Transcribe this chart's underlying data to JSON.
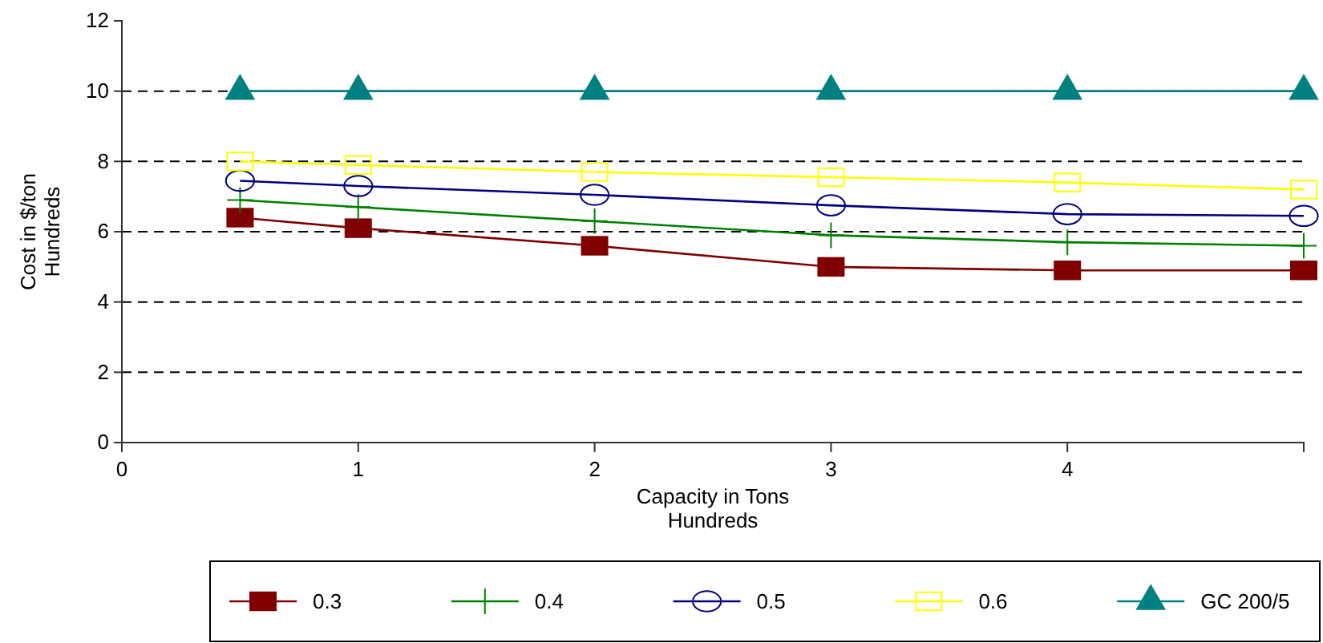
{
  "chart_data": {
    "type": "line",
    "xlabel": "Capacity in Tons\nHundreds",
    "ylabel": "Cost in $/ton\nHundreds",
    "x": [
      0.5,
      1,
      2,
      3,
      4,
      5
    ],
    "xlim": [
      0,
      5
    ],
    "xticks": [
      0,
      1,
      2,
      3,
      4
    ],
    "ylim": [
      0,
      12
    ],
    "yticks": [
      0,
      2,
      4,
      6,
      8,
      10,
      12
    ],
    "grid": "y",
    "legend": "bottom",
    "line_style": "solid",
    "series": [
      {
        "name": "0.3",
        "color": "#800000",
        "marker": "square",
        "values": [
          6.4,
          6.1,
          5.6,
          5.0,
          4.9,
          4.9
        ]
      },
      {
        "name": "0.4",
        "color": "#008000",
        "marker": "cross",
        "values": [
          6.9,
          6.7,
          6.3,
          5.9,
          5.7,
          5.6
        ]
      },
      {
        "name": "0.5",
        "color": "#000080",
        "marker": "circle",
        "values": [
          7.45,
          7.3,
          7.05,
          6.75,
          6.5,
          6.45
        ]
      },
      {
        "name": "0.6",
        "color": "#ffff00",
        "marker": "square",
        "values": [
          8.0,
          7.9,
          7.7,
          7.55,
          7.4,
          7.2
        ]
      },
      {
        "name": "GC 200/5",
        "color": "#008080",
        "marker": "triangle",
        "values": [
          10,
          10,
          10,
          10,
          10,
          10
        ]
      }
    ]
  }
}
